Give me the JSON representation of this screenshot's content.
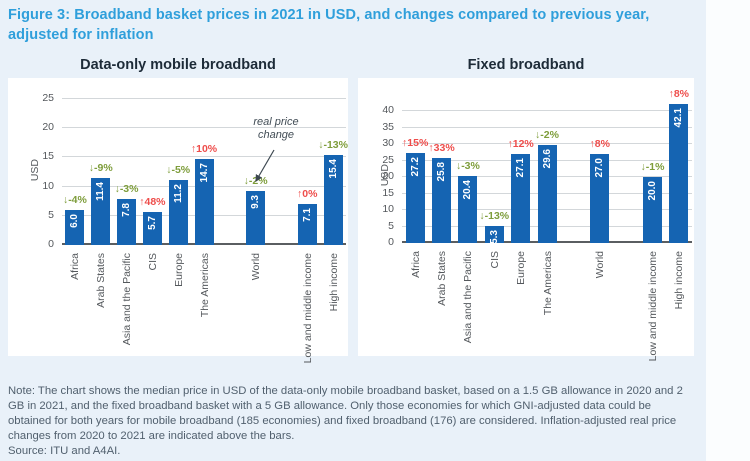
{
  "figure": {
    "title": "Figure 3: Broadband basket prices in 2021 in USD, and changes compared to previous year, adjusted for inflation",
    "note": "Note: The chart shows the median price in USD of the data-only mobile broadband basket, based on a 1.5 GB allowance in 2020 and 2 GB in 2021, and the fixed broadband basket with a 5 GB allowance. Only those economies for which GNI-adjusted data could be obtained for both years for mobile broadband (185 economies) and fixed broadband (176) are considered. Inflation-adjusted real price changes from 2020 to 2021 are indicated above the bars.",
    "source": "Source: ITU and A4AI."
  },
  "colors": {
    "bar": "#1564b2",
    "increase": "#ee4d4b",
    "decrease": "#7e9d3b",
    "title": "#2f9fdb",
    "annotation": "#3c4750"
  },
  "chart_data": [
    {
      "id": "mobile",
      "type": "bar",
      "title": "Data-only mobile broadband",
      "ylabel": "USD",
      "ylim": [
        0,
        25
      ],
      "yticks": [
        0,
        5,
        10,
        15,
        20,
        25
      ],
      "grid": true,
      "categories": [
        "Africa",
        "Arab States",
        "Asia and the Pacific",
        "CIS",
        "Europe",
        "The Americas",
        "World",
        "Low and middle income",
        "High income"
      ],
      "values": [
        6.0,
        11.4,
        7.8,
        5.7,
        11.2,
        14.7,
        9.3,
        7.1,
        15.4
      ],
      "bar_labels": [
        "6.0",
        "11.4",
        "7.8",
        "5.7",
        "11.2",
        "14.7",
        "9.3",
        "7.1",
        "15.4"
      ],
      "changes": [
        {
          "arrow": "↓",
          "label": "-4%",
          "direction": "decrease"
        },
        {
          "arrow": "↓",
          "label": "-9%",
          "direction": "decrease"
        },
        {
          "arrow": "↓",
          "label": "-3%",
          "direction": "decrease"
        },
        {
          "arrow": "↑",
          "label": "48%",
          "direction": "increase"
        },
        {
          "arrow": "↓",
          "label": "-5%",
          "direction": "decrease"
        },
        {
          "arrow": "↑",
          "label": "10%",
          "direction": "increase"
        },
        {
          "arrow": "↓",
          "label": "-2%",
          "direction": "decrease"
        },
        {
          "arrow": "↑",
          "label": "0%",
          "direction": "increase"
        },
        {
          "arrow": "↓",
          "label": "-13%",
          "direction": "decrease"
        }
      ],
      "gap_before_indices": [
        6,
        7
      ],
      "annotation": "real price change"
    },
    {
      "id": "fixed",
      "type": "bar",
      "title": "Fixed broadband",
      "ylabel": "USD",
      "ylim": [
        0,
        40
      ],
      "yticks": [
        0,
        5,
        10,
        15,
        20,
        25,
        30,
        35,
        40
      ],
      "grid": true,
      "categories": [
        "Africa",
        "Arab States",
        "Asia and the Pacific",
        "CIS",
        "Europe",
        "The Americas",
        "World",
        "Low and middle income",
        "High income"
      ],
      "values": [
        27.2,
        25.8,
        20.4,
        5.3,
        27.1,
        29.6,
        27.0,
        20.0,
        42.1
      ],
      "bar_labels": [
        "27.2",
        "25.8",
        "20.4",
        "5.3",
        "27.1",
        "29.6",
        "27.0",
        "20.0",
        "42.1"
      ],
      "changes": [
        {
          "arrow": "↑",
          "label": "15%",
          "direction": "increase"
        },
        {
          "arrow": "↑",
          "label": "33%",
          "direction": "increase"
        },
        {
          "arrow": "↓",
          "label": "-3%",
          "direction": "decrease"
        },
        {
          "arrow": "↓",
          "label": "-13%",
          "direction": "decrease"
        },
        {
          "arrow": "↑",
          "label": "12%",
          "direction": "increase"
        },
        {
          "arrow": "↓",
          "label": "-2%",
          "direction": "decrease"
        },
        {
          "arrow": "↑",
          "label": "8%",
          "direction": "increase"
        },
        {
          "arrow": "↓",
          "label": "-1%",
          "direction": "decrease"
        },
        {
          "arrow": "↑",
          "label": "8%",
          "direction": "increase"
        }
      ],
      "gap_before_indices": [
        6,
        7
      ],
      "annotation": null
    }
  ]
}
